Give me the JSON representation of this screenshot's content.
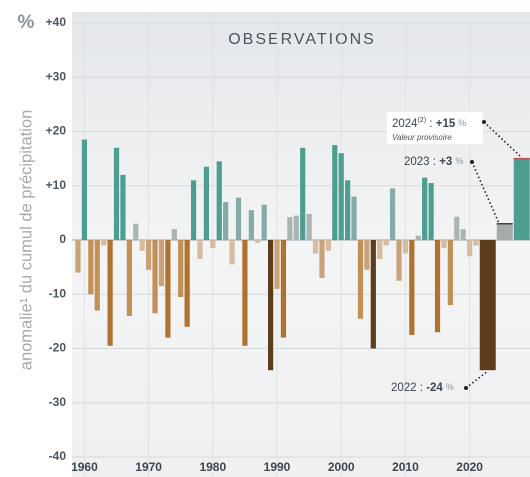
{
  "chart_data": {
    "type": "bar",
    "title": "OBSERVATIONS",
    "y_unit": "%",
    "y_label": "anomalie¹ du cumul de précipitation",
    "x": [
      1959,
      1960,
      1961,
      1962,
      1963,
      1964,
      1965,
      1966,
      1967,
      1968,
      1969,
      1970,
      1971,
      1972,
      1973,
      1974,
      1975,
      1976,
      1977,
      1978,
      1979,
      1980,
      1981,
      1982,
      1983,
      1984,
      1985,
      1986,
      1987,
      1988,
      1989,
      1990,
      1991,
      1992,
      1993,
      1994,
      1995,
      1996,
      1997,
      1998,
      1999,
      2000,
      2001,
      2002,
      2003,
      2004,
      2005,
      2006,
      2007,
      2008,
      2009,
      2010,
      2011,
      2012,
      2013,
      2014,
      2015,
      2016,
      2017,
      2018,
      2019,
      2020,
      2021,
      2022,
      2023,
      2024
    ],
    "values": [
      -6,
      18.5,
      -10,
      -13,
      -1,
      -19.5,
      17,
      12,
      -14,
      3,
      -2,
      -5.5,
      -13.5,
      -8.5,
      -18,
      2,
      -10.5,
      -16,
      11,
      -3.5,
      13.5,
      -1.5,
      14.5,
      7,
      -4.5,
      7.8,
      -19.5,
      5.5,
      -0.5,
      6.5,
      -24,
      -9,
      -18,
      4.2,
      4.5,
      17,
      4.8,
      -2.5,
      -7,
      -2,
      17.5,
      16,
      11,
      8,
      -14.5,
      -5.5,
      -20,
      -3.5,
      -1,
      9.5,
      -7.5,
      -2.5,
      -17.5,
      0.8,
      11.5,
      10.5,
      -17,
      -1.5,
      -12,
      4.3,
      2,
      -3,
      -1,
      -24,
      3,
      15
    ],
    "xticks": [
      1960,
      1970,
      1980,
      1990,
      2000,
      2010,
      2020
    ],
    "ylim": [
      -40,
      40
    ],
    "yticks": [
      -40,
      -30,
      -20,
      -10,
      0,
      {
        "value": 10,
        "label": "+10"
      },
      {
        "value": 20,
        "label": "+20"
      },
      {
        "value": 30,
        "label": "+30"
      },
      {
        "value": 40,
        "label": "+40"
      }
    ],
    "grid": true,
    "annotations": [
      {
        "year": "2024",
        "note": "(2)",
        "separator": " : ",
        "value_label": "+15",
        "unit": "%",
        "subtitle": "Valeur provisoire"
      },
      {
        "year": "2023",
        "separator": " : ",
        "value_label": "+3",
        "unit": "%"
      },
      {
        "year": "2022",
        "separator": " : ",
        "value_label": "-24",
        "unit": "%"
      }
    ]
  }
}
